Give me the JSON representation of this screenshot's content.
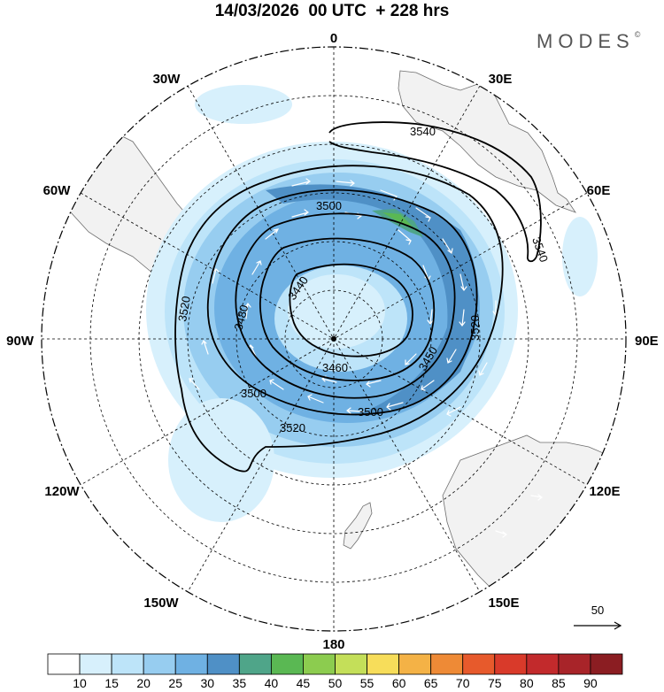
{
  "header": {
    "title": "14/03/2026  00 UTC  + 228 hrs",
    "brand": "MODES",
    "brand_mark": "©"
  },
  "longitude_labels": {
    "n0": "0",
    "e30": "30E",
    "e60": "60E",
    "e90": "90E",
    "e120": "120E",
    "e150": "150E",
    "s180": "180",
    "w150": "150W",
    "w120": "120W",
    "w90": "90W",
    "w60": "60W",
    "w30": "30W"
  },
  "contour_labels": {
    "c3540a": "3540",
    "c3540b": "3540",
    "c3500a": "3500",
    "c3440": "3440",
    "c3480": "3480",
    "c3520a": "3520",
    "c3520b": "3520",
    "c3520c": "3520",
    "c3460": "3460",
    "c3450": "3450",
    "c3500b": "3500",
    "c3500c": "3500"
  },
  "vector_reference": {
    "value": "50"
  },
  "colorbar": {
    "ticks": [
      "10",
      "15",
      "20",
      "25",
      "30",
      "35",
      "40",
      "45",
      "50",
      "55",
      "60",
      "65",
      "70",
      "75",
      "80",
      "85",
      "90"
    ],
    "colors": [
      "#ffffff",
      "#d7f0fc",
      "#bde4f9",
      "#97cdf0",
      "#6fb1e3",
      "#4f90c6",
      "#4fa589",
      "#5ab853",
      "#8ccc4f",
      "#c4df59",
      "#f7dd5a",
      "#f4b246",
      "#ee8a36",
      "#e75a2c",
      "#d93a2a",
      "#c22a2c",
      "#a82429",
      "#8b1d22"
    ]
  }
}
